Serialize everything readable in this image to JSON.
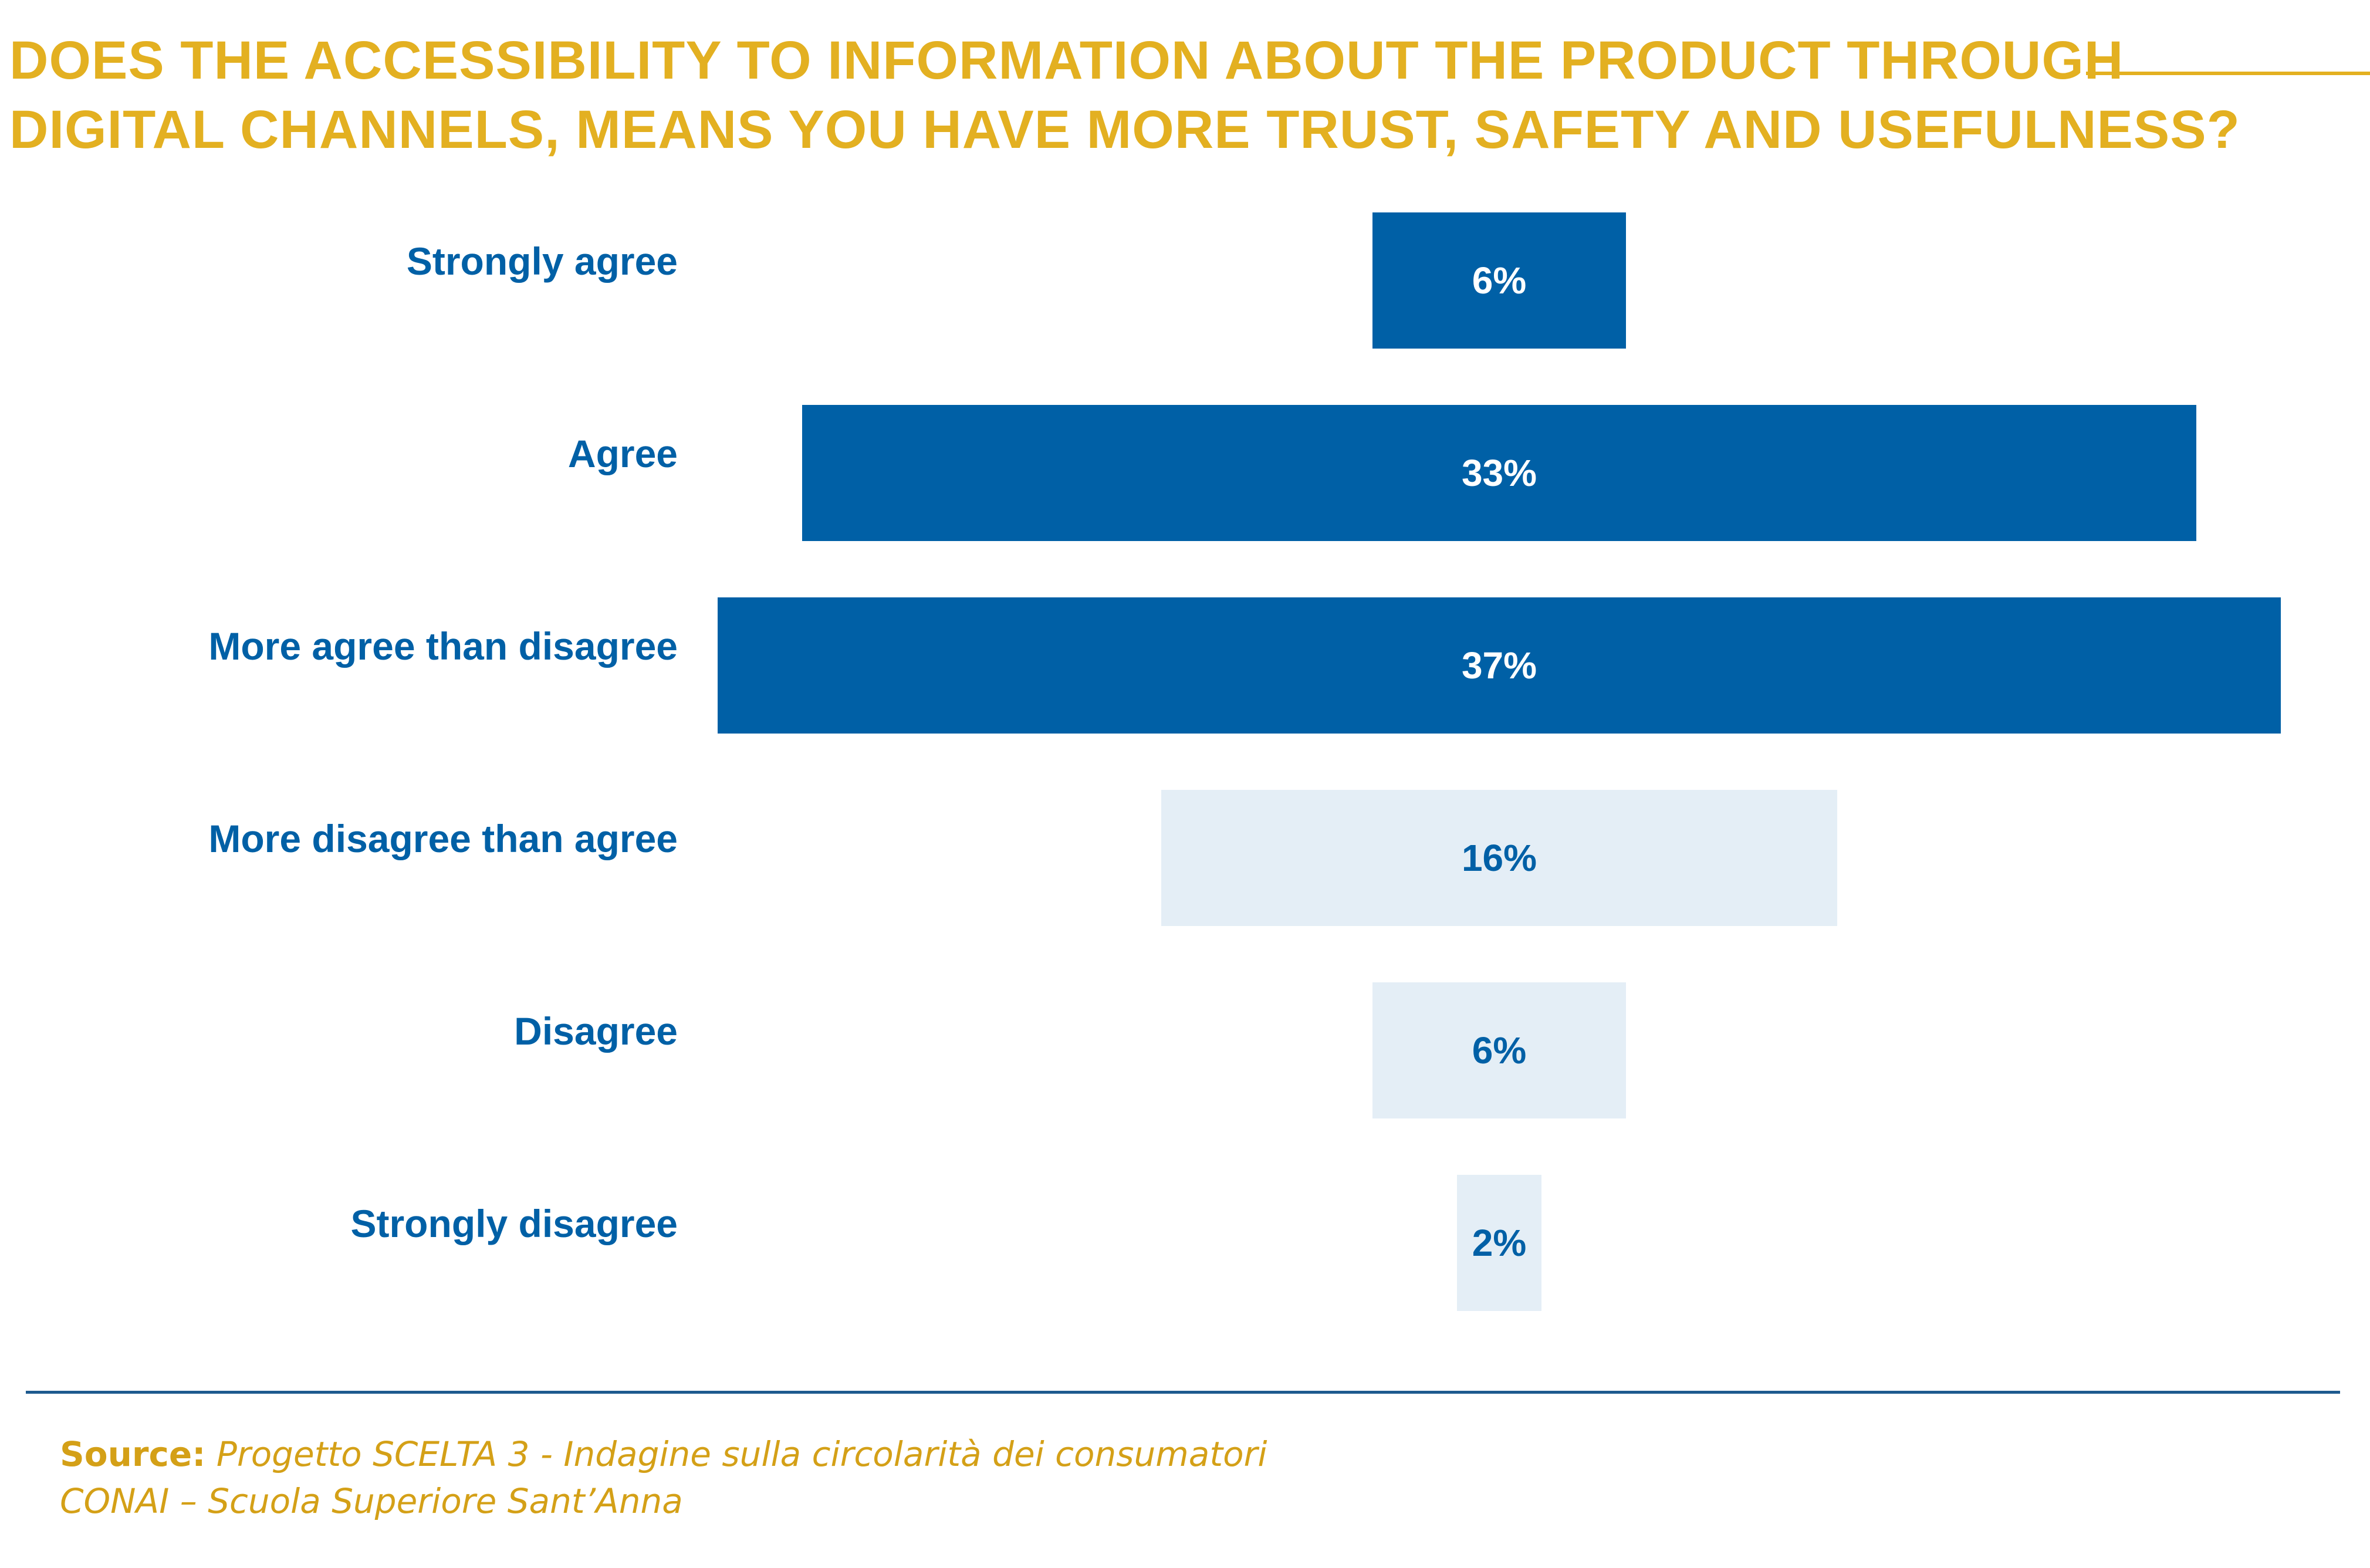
{
  "title": {
    "line1": "DOES THE ACCESSIBILITY TO INFORMATION ABOUT THE PRODUCT THROUGH",
    "line2": "DIGITAL CHANNELS, MEANS YOU HAVE MORE TRUST, SAFETY AND USEFULNESS?"
  },
  "colors": {
    "title": "#e3b021",
    "agree_bar": "#0060a6",
    "disagree_bar": "#e4eef6",
    "label": "#0060a6",
    "source": "#d4a017"
  },
  "chart_data": {
    "type": "bar",
    "orientation": "horizontal",
    "layout": "centered",
    "title": "DOES THE ACCESSIBILITY TO INFORMATION ABOUT THE PRODUCT THROUGH DIGITAL CHANNELS, MEANS YOU HAVE MORE TRUST, SAFETY AND USEFULNESS?",
    "categories": [
      "Strongly agree",
      "Agree",
      "More agree than disagree",
      "More disagree than agree",
      "Disagree",
      "Strongly disagree"
    ],
    "values": [
      6,
      33,
      37,
      16,
      6,
      2
    ],
    "value_labels": [
      "6%",
      "33%",
      "37%",
      "16%",
      "6%",
      "2%"
    ],
    "bar_groups": [
      "agree",
      "agree",
      "agree",
      "disagree",
      "disagree",
      "disagree"
    ],
    "unit": "%",
    "grid": false,
    "legend": "none"
  },
  "source": {
    "label": "Source:",
    "line1": "Progetto SCELTA 3 - Indagine sulla circolarità dei consumatori",
    "line2": "CONAI – Scuola Superiore Sant’Anna"
  }
}
